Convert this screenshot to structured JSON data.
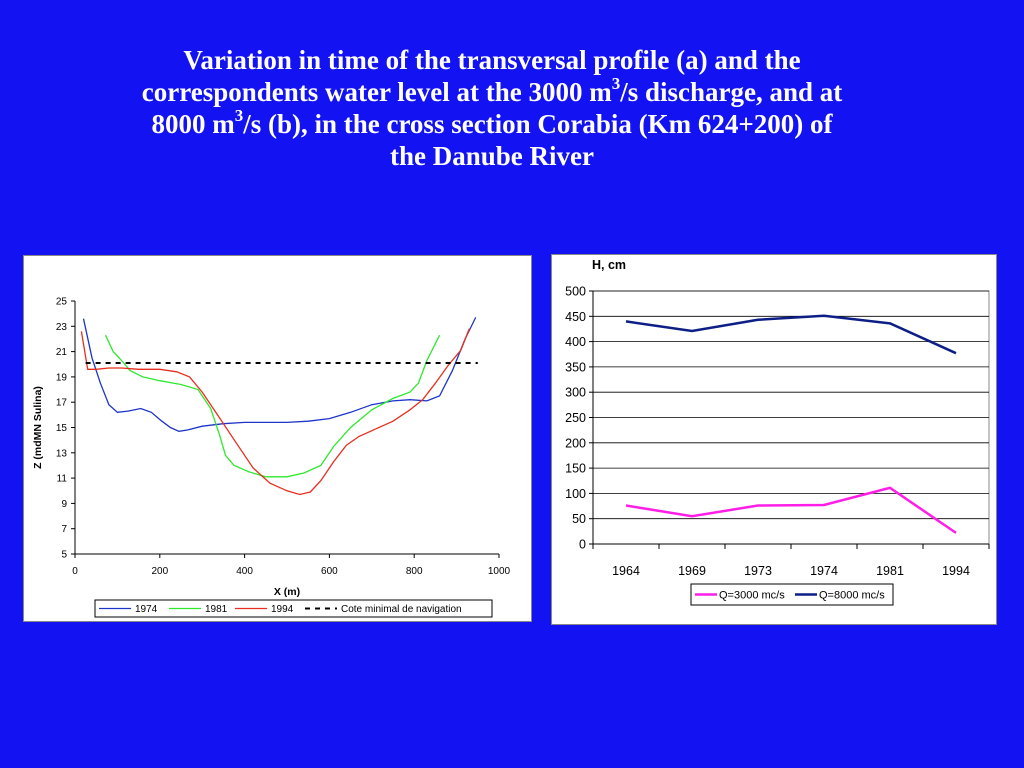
{
  "title": {
    "line1": "Variation in time of the transversal profile (a) and the",
    "line2_pre": "correspondents water level at the  3000 m",
    "line2_sup": "3",
    "line2_post": "/s discharge, and at",
    "line3_pre": "8000 m",
    "line3_sup": "3",
    "line3_post": "/s (b), in the cross section Corabia (Km 624+200) of",
    "line4": "the Danube River"
  },
  "chart_data": [
    {
      "type": "line",
      "xlabel": "X (m)",
      "ylabel": "Z (mdMN Sulina)",
      "xlim": [
        0,
        1000
      ],
      "ylim": [
        5,
        25
      ],
      "xticks": [
        0,
        200,
        400,
        600,
        800,
        1000
      ],
      "yticks": [
        5,
        7,
        9,
        11,
        13,
        15,
        17,
        19,
        21,
        23,
        25
      ],
      "grid": false,
      "legend_position": "bottom",
      "series": [
        {
          "name": "1974",
          "color": "#1c34c8",
          "dash": false,
          "points": [
            [
              20,
              23.6
            ],
            [
              40,
              20.5
            ],
            [
              60,
              18.5
            ],
            [
              80,
              16.8
            ],
            [
              100,
              16.2
            ],
            [
              125,
              16.3
            ],
            [
              155,
              16.5
            ],
            [
              180,
              16.2
            ],
            [
              205,
              15.5
            ],
            [
              225,
              15.0
            ],
            [
              245,
              14.7
            ],
            [
              265,
              14.8
            ],
            [
              300,
              15.1
            ],
            [
              350,
              15.3
            ],
            [
              400,
              15.4
            ],
            [
              450,
              15.4
            ],
            [
              500,
              15.4
            ],
            [
              550,
              15.5
            ],
            [
              600,
              15.7
            ],
            [
              650,
              16.2
            ],
            [
              700,
              16.8
            ],
            [
              750,
              17.1
            ],
            [
              790,
              17.2
            ],
            [
              830,
              17.1
            ],
            [
              860,
              17.5
            ],
            [
              890,
              19.5
            ],
            [
              920,
              22.0
            ],
            [
              945,
              23.7
            ]
          ]
        },
        {
          "name": "1981",
          "color": "#2ee82e",
          "dash": false,
          "points": [
            [
              72,
              22.3
            ],
            [
              90,
              21.0
            ],
            [
              110,
              20.3
            ],
            [
              130,
              19.5
            ],
            [
              160,
              19.0
            ],
            [
              200,
              18.7
            ],
            [
              250,
              18.4
            ],
            [
              290,
              18.0
            ],
            [
              320,
              16.5
            ],
            [
              340,
              14.5
            ],
            [
              355,
              12.8
            ],
            [
              375,
              12.0
            ],
            [
              410,
              11.5
            ],
            [
              450,
              11.1
            ],
            [
              500,
              11.1
            ],
            [
              540,
              11.4
            ],
            [
              580,
              12.0
            ],
            [
              610,
              13.5
            ],
            [
              650,
              15.0
            ],
            [
              700,
              16.4
            ],
            [
              750,
              17.3
            ],
            [
              790,
              17.8
            ],
            [
              810,
              18.5
            ],
            [
              830,
              20.3
            ],
            [
              860,
              22.3
            ]
          ]
        },
        {
          "name": "1994",
          "color": "#e82e1e",
          "dash": false,
          "points": [
            [
              15,
              22.6
            ],
            [
              30,
              19.6
            ],
            [
              50,
              19.6
            ],
            [
              80,
              19.7
            ],
            [
              110,
              19.7
            ],
            [
              150,
              19.6
            ],
            [
              200,
              19.6
            ],
            [
              240,
              19.4
            ],
            [
              270,
              19.0
            ],
            [
              300,
              17.8
            ],
            [
              340,
              15.8
            ],
            [
              380,
              13.8
            ],
            [
              420,
              11.8
            ],
            [
              460,
              10.6
            ],
            [
              500,
              10.0
            ],
            [
              530,
              9.7
            ],
            [
              555,
              9.9
            ],
            [
              580,
              10.8
            ],
            [
              610,
              12.3
            ],
            [
              640,
              13.6
            ],
            [
              670,
              14.3
            ],
            [
              710,
              14.9
            ],
            [
              750,
              15.5
            ],
            [
              790,
              16.4
            ],
            [
              820,
              17.2
            ],
            [
              850,
              18.5
            ],
            [
              880,
              19.9
            ],
            [
              910,
              21.1
            ],
            [
              930,
              22.8
            ]
          ]
        },
        {
          "name": "Cote minimal de navigation",
          "color": "#000000",
          "dash": true,
          "points": [
            [
              25,
              20.1
            ],
            [
              950,
              20.1
            ]
          ]
        }
      ]
    },
    {
      "type": "line",
      "title": "H, cm",
      "categories": [
        "1964",
        "1969",
        "1973",
        "1974",
        "1981",
        "1994"
      ],
      "ylim": [
        0,
        500
      ],
      "yticks": [
        0,
        50,
        100,
        150,
        200,
        250,
        300,
        350,
        400,
        450,
        500
      ],
      "grid": true,
      "legend_position": "bottom",
      "series": [
        {
          "name": "Q=3000 mc/s",
          "color": "#ff1ee8",
          "values": [
            76,
            55,
            76,
            77,
            111,
            22
          ]
        },
        {
          "name": "Q=8000 mc/s",
          "color": "#0d1f86",
          "values": [
            440,
            421,
            443,
            451,
            436,
            377
          ]
        }
      ]
    }
  ]
}
